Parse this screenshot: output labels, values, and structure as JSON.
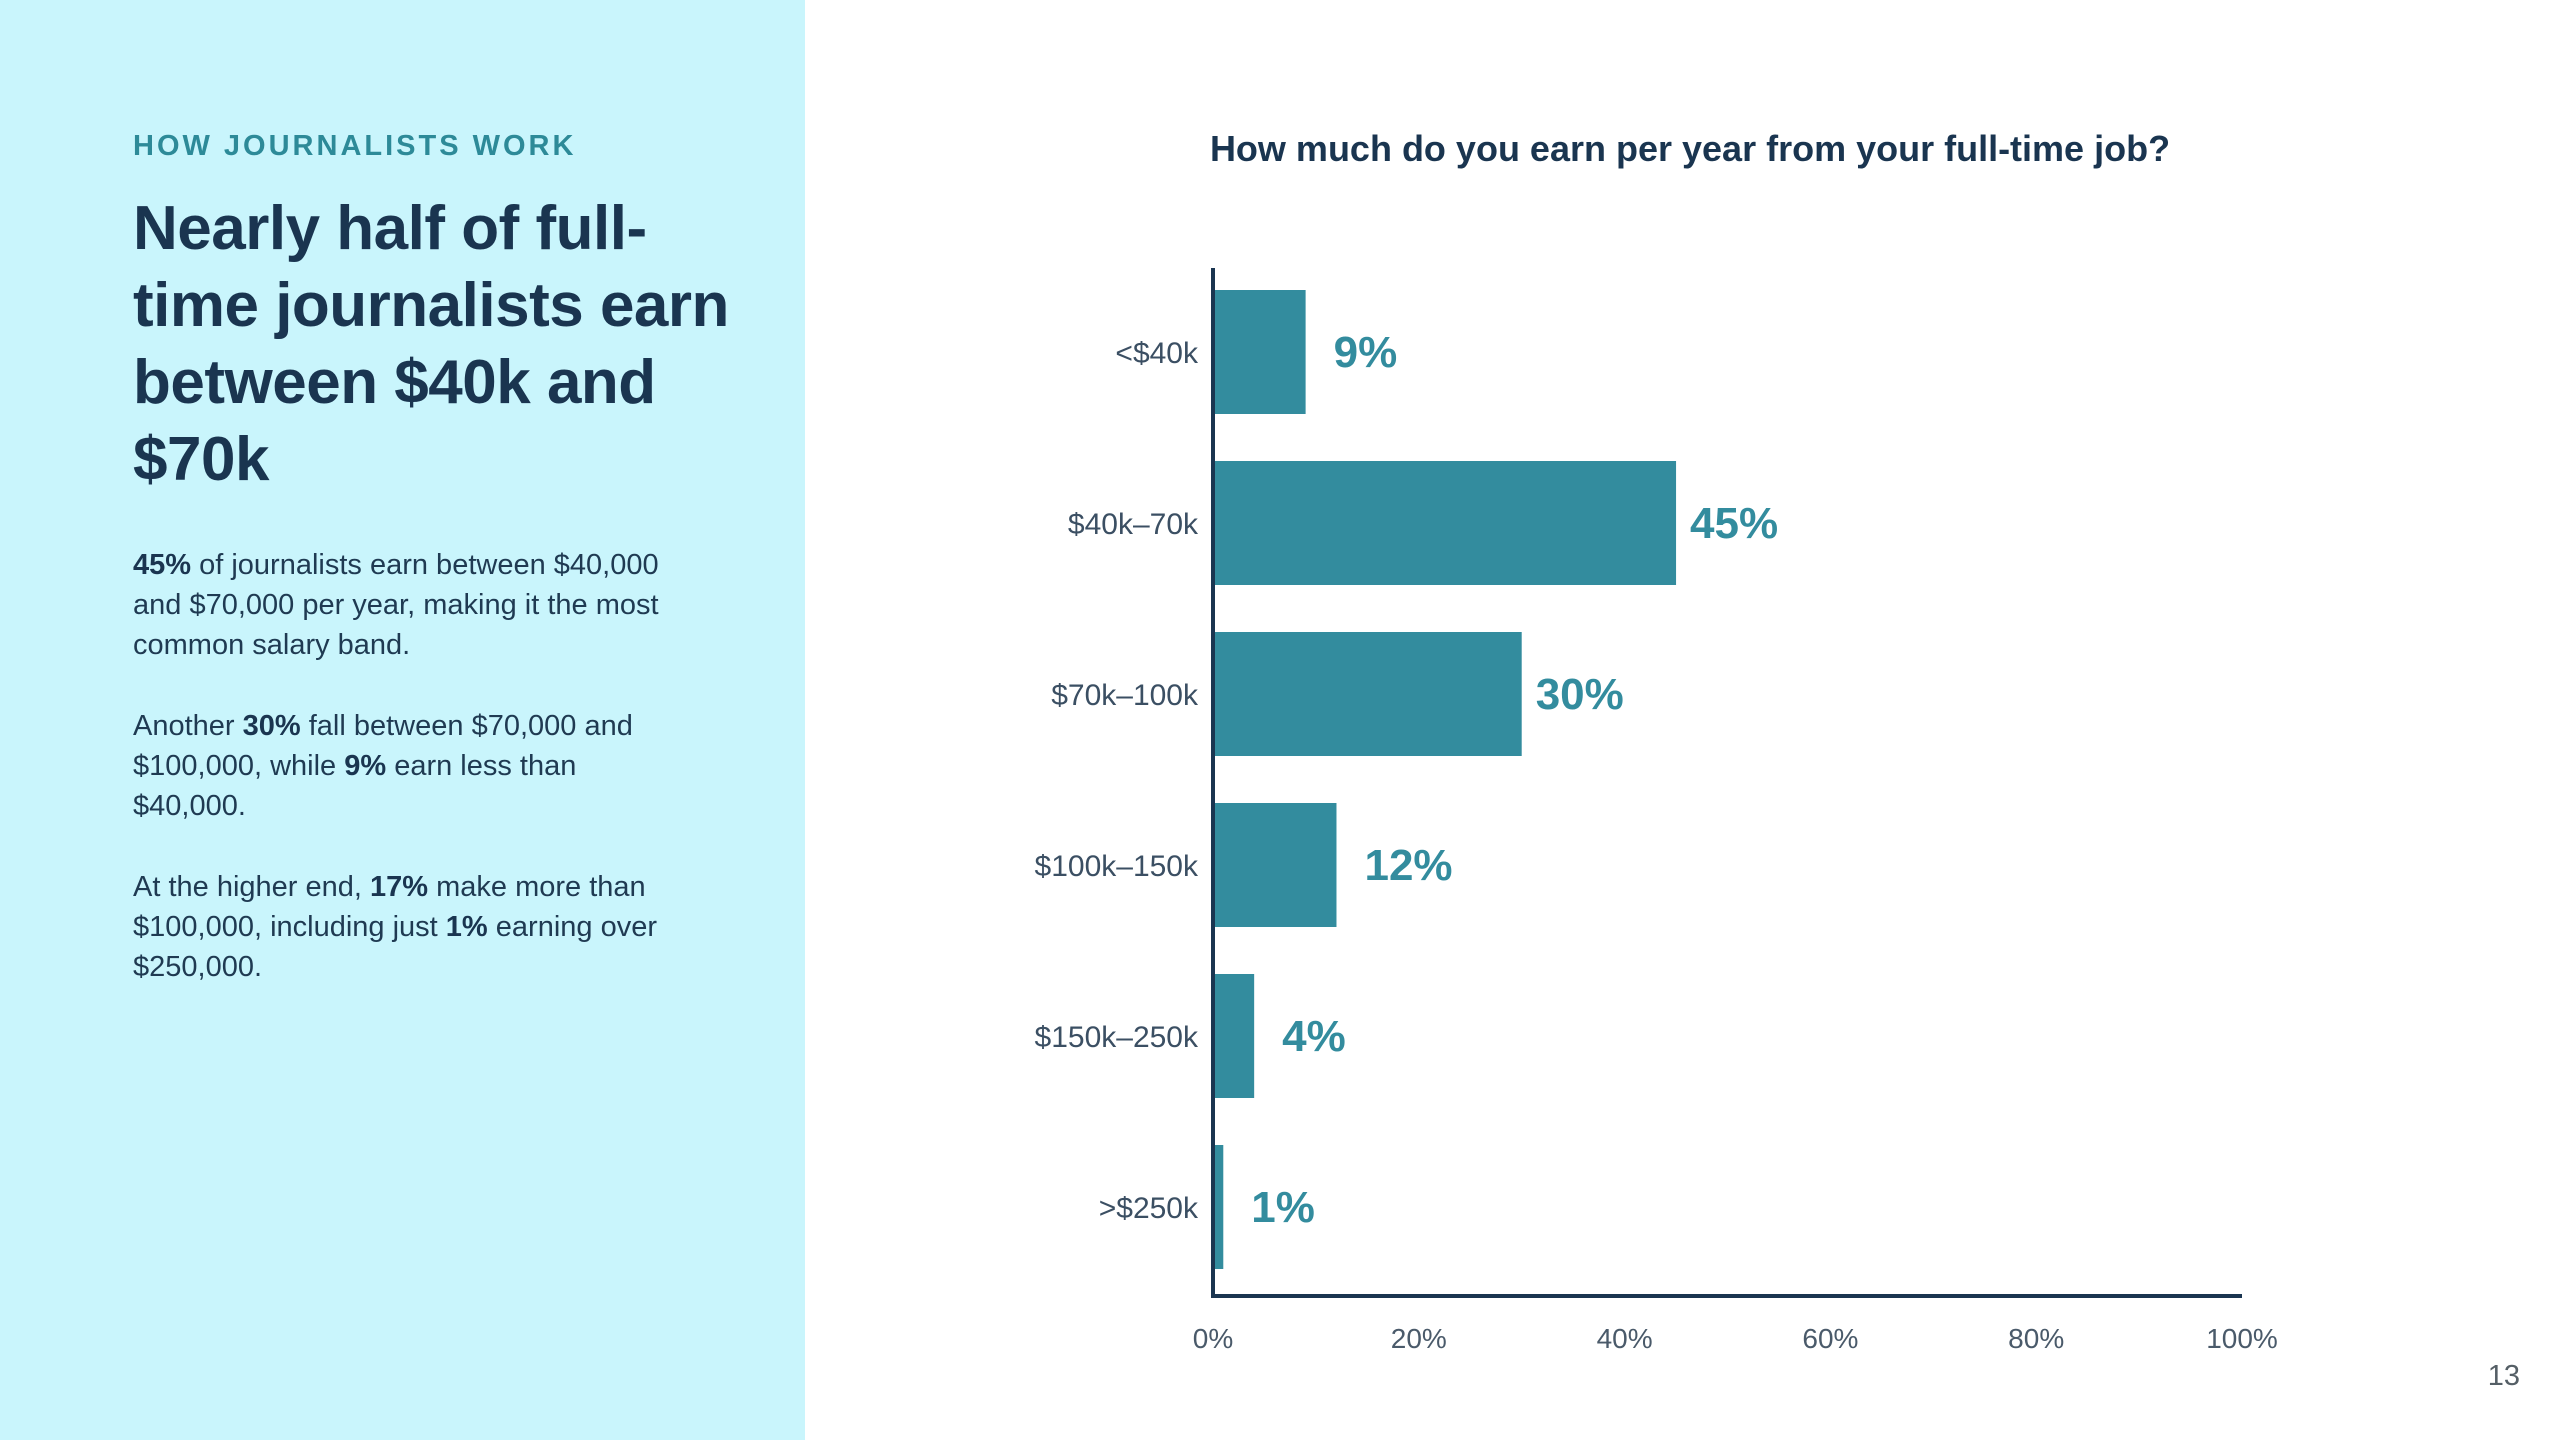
{
  "left": {
    "eyebrow": "HOW JOURNALISTS WORK",
    "headline": "Nearly half of full-time journalists earn between $40k and $70k",
    "paragraphs": [
      [
        {
          "text": "45%",
          "bold": true
        },
        {
          "text": " of journalists earn between $40,000 and $70,000 per year, making it the most common salary band.",
          "bold": false
        }
      ],
      [
        {
          "text": "Another ",
          "bold": false
        },
        {
          "text": "30%",
          "bold": true
        },
        {
          "text": " fall between $70,000 and $100,000, while ",
          "bold": false
        },
        {
          "text": "9%",
          "bold": true
        },
        {
          "text": " earn less than $40,000.",
          "bold": false
        }
      ],
      [
        {
          "text": "At the higher end, ",
          "bold": false
        },
        {
          "text": "17%",
          "bold": true
        },
        {
          "text": " make more than $100,000, including just ",
          "bold": false
        },
        {
          "text": "1%",
          "bold": true
        },
        {
          "text": " earning over $250,000.",
          "bold": false
        }
      ]
    ]
  },
  "page_number": "13",
  "colors": {
    "panel": "#c9f5fc",
    "bar": "#338c9e",
    "label": "#338c9e",
    "axis": "#1a3550",
    "text": "#1a3550"
  },
  "chart_data": {
    "type": "bar",
    "orientation": "horizontal",
    "title": "How much do you earn per year from your full-time job?",
    "categories": [
      "<$40k",
      "$40k–70k",
      "$70k–100k",
      "$100k–150k",
      "$150k–250k",
      ">$250k"
    ],
    "values": [
      9,
      45,
      30,
      12,
      4,
      1
    ],
    "value_labels": [
      "9%",
      "45%",
      "30%",
      "12%",
      "4%",
      "1%"
    ],
    "xlim": [
      0,
      100
    ],
    "xticks": [
      0,
      20,
      40,
      60,
      80,
      100
    ],
    "xtick_labels": [
      "0%",
      "20%",
      "40%",
      "60%",
      "80%",
      "100%"
    ],
    "xlabel": "",
    "ylabel": "",
    "grid": false,
    "legend": "none"
  }
}
